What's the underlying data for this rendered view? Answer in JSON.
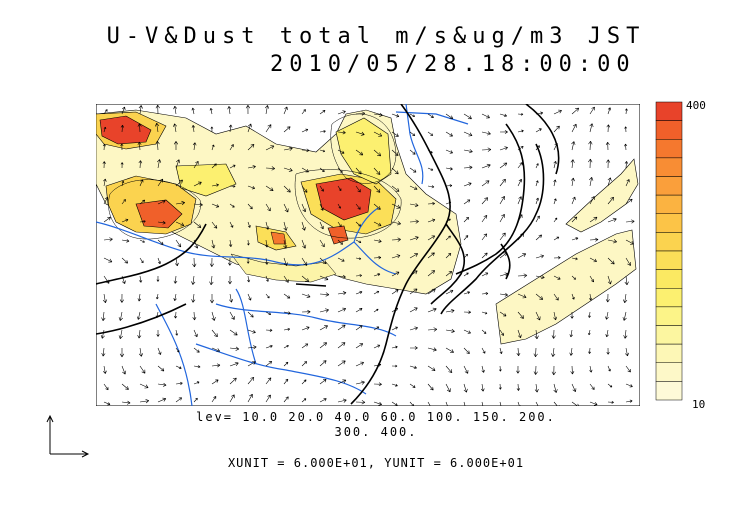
{
  "title": {
    "line1": "U-V&Dust total m/s&ug/m3 JST",
    "line2": "2010/05/28.18:00:00"
  },
  "colorbar": {
    "max_label": "400",
    "min_label": "10",
    "colors": [
      "#e8432a",
      "#f0602a",
      "#f5782e",
      "#f88d34",
      "#fa9f3b",
      "#fbb341",
      "#fcc447",
      "#fbd34f",
      "#fbdf58",
      "#fbe962",
      "#fcf070",
      "#fcf488",
      "#fcf6a0",
      "#fdf7b6",
      "#fdf8c8",
      "#fefad8"
    ]
  },
  "contour_levels": {
    "line1": "lev= 10.0 20.0 40.0 60.0 100. 150. 200.",
    "line2": "300. 400."
  },
  "units_text": "XUNIT = 6.000E+01, YUNIT = 6.000E+01",
  "colors": {
    "river": "#2266dd",
    "coast": "#000000",
    "dust_low": "#fdf7c4",
    "dust_mid": "#fbd34f",
    "dust_high": "#e8432a"
  }
}
